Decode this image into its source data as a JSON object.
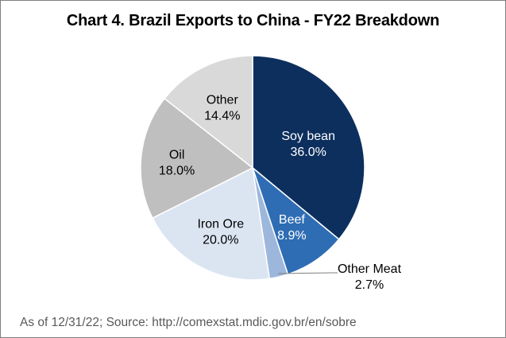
{
  "chart_data": {
    "type": "pie",
    "title": "Chart 4. Brazil Exports to China - FY22 Breakdown",
    "source_note": "As of 12/31/22; Source: http://comexstat.mdic.gov.br/en/sobre",
    "start_angle": "12 o'clock, clockwise",
    "slices": [
      {
        "label": "Soy bean",
        "value": 36.0,
        "value_label": "36.0%",
        "color": "#0d2f5e",
        "text_color": "#ffffff"
      },
      {
        "label": "Beef",
        "value": 8.9,
        "value_label": "8.9%",
        "color": "#2e6db3",
        "text_color": "#ffffff"
      },
      {
        "label": "Other Meat",
        "value": 2.7,
        "value_label": "2.7%",
        "color": "#9db7dc",
        "text_color": "#000000"
      },
      {
        "label": "Iron Ore",
        "value": 20.0,
        "value_label": "20.0%",
        "color": "#dbe5f2",
        "text_color": "#000000"
      },
      {
        "label": "Oil",
        "value": 18.0,
        "value_label": "18.0%",
        "color": "#bfbfbf",
        "text_color": "#000000"
      },
      {
        "label": "Other",
        "value": 14.4,
        "value_label": "14.4%",
        "color": "#d9d9d9",
        "text_color": "#000000"
      }
    ]
  }
}
